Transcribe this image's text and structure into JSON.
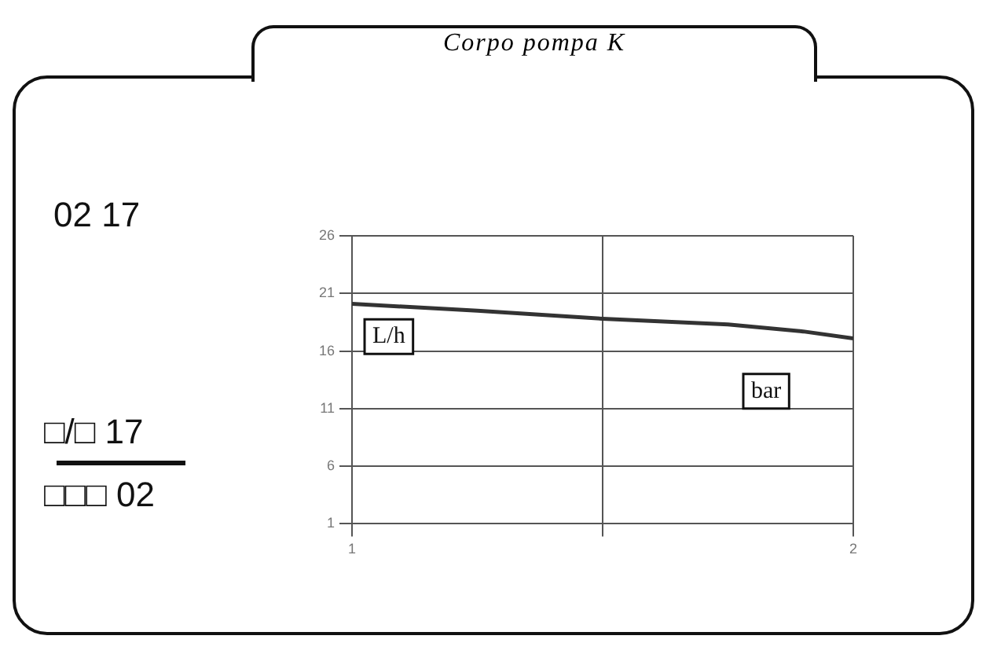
{
  "chart_data": {
    "type": "line",
    "title": "Corpo pompa K",
    "xlabel": "bar",
    "ylabel": "L/h",
    "annotations": [
      "02  17",
      "□/□  17",
      "□□□  02"
    ],
    "x": [
      1,
      1.25,
      1.5,
      1.75,
      1.9,
      2
    ],
    "series": [
      {
        "color": "#333333",
        "values": [
          20.1,
          19.5,
          18.8,
          18.3,
          17.7,
          17.1
        ]
      }
    ],
    "xlim": [
      1,
      2
    ],
    "ylim": [
      1,
      26
    ],
    "xticks": [
      1,
      {
        "value": 1.5,
        "label": null
      },
      2
    ],
    "yticks": [
      1,
      6,
      11,
      16,
      21,
      26
    ],
    "grid": true,
    "marker": "none"
  }
}
